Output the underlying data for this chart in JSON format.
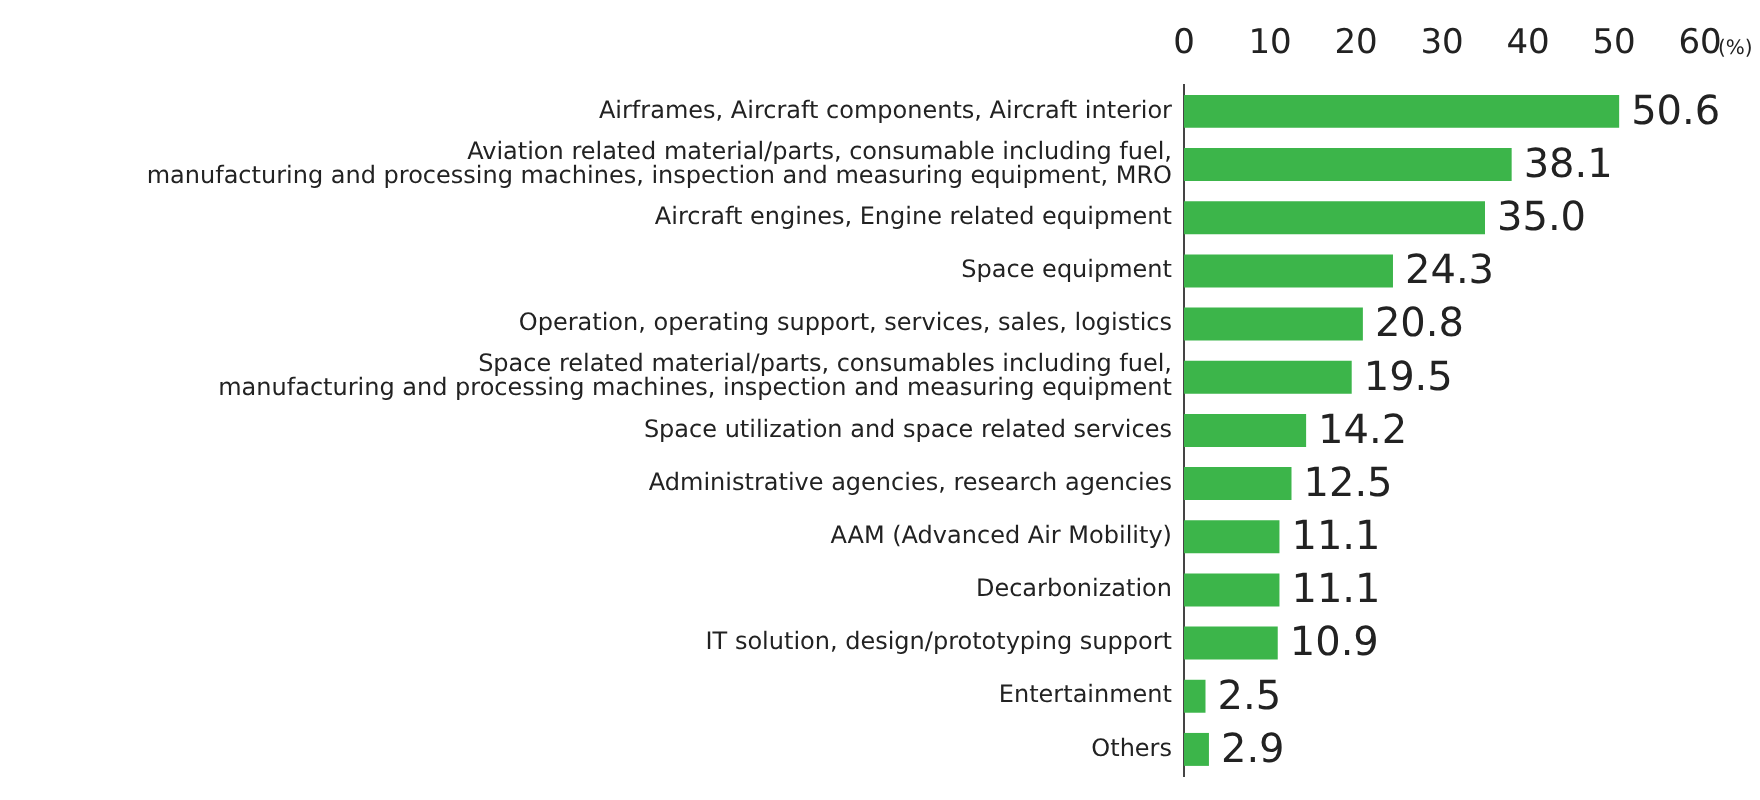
{
  "chart_data": {
    "type": "bar",
    "orientation": "horizontal",
    "xlabel": "(%)",
    "categories": [
      "Airframes, Aircraft components, Aircraft interior",
      "Aviation related material/parts, consumable including fuel,\nmanufacturing and processing machines, inspection and measuring equipment, MRO",
      "Aircraft engines, Engine related equipment",
      "Space equipment",
      "Operation, operating support, services, sales, logistics",
      "Space related material/parts, consumables including fuel,\nmanufacturing and processing machines, inspection and measuring equipment",
      "Space utilization and space related services",
      "Administrative agencies, research agencies",
      "AAM (Advanced Air Mobility)",
      "Decarbonization",
      "IT solution, design/prototyping support",
      "Entertainment",
      "Others"
    ],
    "values": [
      50.6,
      38.1,
      35.0,
      24.3,
      20.8,
      19.5,
      14.2,
      12.5,
      11.1,
      11.1,
      10.9,
      2.5,
      2.9
    ],
    "value_labels": [
      "50.6",
      "38.1",
      "35.0",
      "24.3",
      "20.8",
      "19.5",
      "14.2",
      "12.5",
      "11.1",
      "11.1",
      "10.9",
      "2.5",
      "2.9"
    ],
    "color": "#3cb54a",
    "xlim": [
      0,
      60
    ],
    "xticks": [
      0,
      10,
      20,
      30,
      40,
      50,
      60
    ],
    "grid": false,
    "legend": false
  }
}
